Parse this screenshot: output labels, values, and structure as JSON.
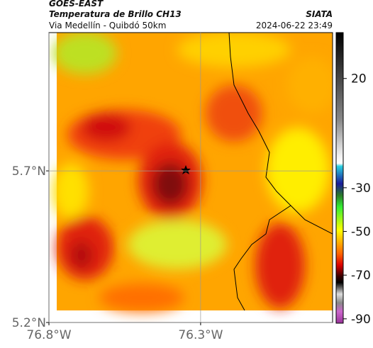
{
  "header": {
    "title": "GOES-EAST",
    "subtitle": "Temperatura de Brillo CH13",
    "source": "SIATA",
    "region": "Via Medellín - Quibdó 50km",
    "timestamp": "2024-06-22 23:49"
  },
  "map": {
    "lat_lim": [
      5.2,
      6.156
    ],
    "lon_lim": [
      -76.8,
      -75.865
    ],
    "lat_ticks": [
      {
        "value": 5.7,
        "label": "5.7°N"
      },
      {
        "value": 5.2,
        "label": "5.2°N"
      }
    ],
    "lon_ticks": [
      {
        "value": -76.8,
        "label": "76.8°W"
      },
      {
        "value": -76.3,
        "label": "76.3°W"
      }
    ],
    "grid": true
  },
  "colorbar": {
    "lim": [
      -92,
      41
    ],
    "ticks": [
      20,
      -30,
      -50,
      -70,
      -90
    ]
  }
}
